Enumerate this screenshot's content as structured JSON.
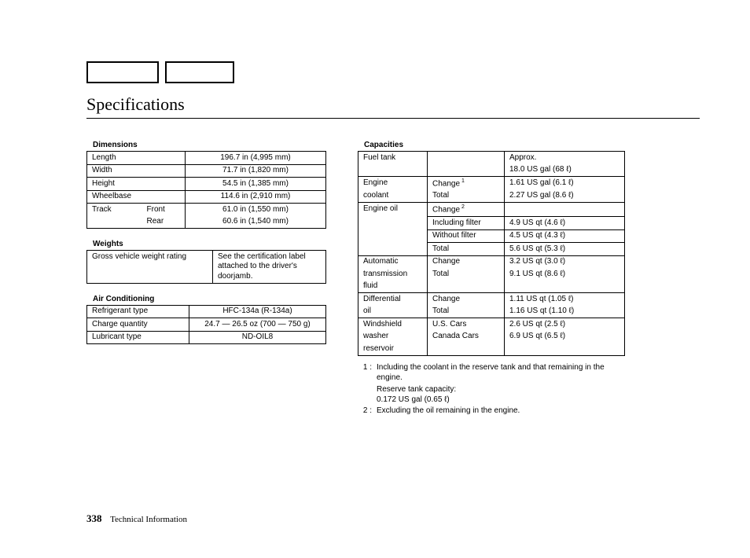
{
  "title": "Specifications",
  "topboxes": {
    "count": 2,
    "widths": [
      88,
      84
    ],
    "height": 24,
    "border_color": "#000000"
  },
  "page_number": "338",
  "page_section": "Technical Information",
  "dimensions": {
    "heading": "Dimensions",
    "rows": [
      {
        "l1": "Length",
        "l2": "",
        "v": "196.7 in (4,995 mm)"
      },
      {
        "l1": "Width",
        "l2": "",
        "v": "71.7 in (1,820 mm)"
      },
      {
        "l1": "Height",
        "l2": "",
        "v": "54.5 in (1,385 mm)"
      },
      {
        "l1": "Wheelbase",
        "l2": "",
        "v": "114.6 in (2,910 mm)"
      },
      {
        "l1": "Track",
        "l2": "Front",
        "v": "61.0 in (1,550 mm)"
      },
      {
        "l1": "",
        "l2": "Rear",
        "v": "60.6 in (1,540 mm)"
      }
    ]
  },
  "weights": {
    "heading": "Weights",
    "label": "Gross vehicle weight rating",
    "value": "See the certification label attached to the driver's doorjamb."
  },
  "ac": {
    "heading": "Air Conditioning",
    "rows": [
      {
        "l": "Refrigerant type",
        "v": "HFC-134a (R-134a)"
      },
      {
        "l": "Charge quantity",
        "v": "24.7 — 26.5 oz (700 — 750 g)"
      },
      {
        "l": "Lubricant type",
        "v": "ND-OIL8"
      }
    ]
  },
  "capacities": {
    "heading": "Capacities",
    "rows": [
      {
        "l1": "Fuel tank",
        "l2": "",
        "v": "Approx.",
        "top": true
      },
      {
        "l1": "",
        "l2": "",
        "v": "18.0 US gal (68 ℓ)"
      },
      {
        "l1": "Engine",
        "l2": "Change",
        "sup": "1",
        "v": "1.61 US gal (6.1 ℓ)",
        "top": true
      },
      {
        "l1": "coolant",
        "l2": "Total",
        "v": "2.27 US gal (8.6 ℓ)"
      },
      {
        "l1": "Engine oil",
        "l2": "Change",
        "sup": "2",
        "v": "",
        "top": true
      },
      {
        "l1": "",
        "l2": "Including filter",
        "v": "4.9 US qt (4.6 ℓ)",
        "ul": true
      },
      {
        "l1": "",
        "l2": "Without filter",
        "v": "4.5 US qt (4.3 ℓ)",
        "ul": true
      },
      {
        "l1": "",
        "l2": "Total",
        "v": "5.6 US qt (5.3 ℓ)",
        "ul": true
      },
      {
        "l1": "Automatic",
        "l2": "Change",
        "v": "3.2 US qt (3.0 ℓ)",
        "top": true
      },
      {
        "l1": "transmission",
        "l2": "Total",
        "v": "9.1 US qt (8.6 ℓ)"
      },
      {
        "l1": "fluid",
        "l2": "",
        "v": ""
      },
      {
        "l1": "Differential",
        "l2": "Change",
        "v": "1.11 US qt (1.05 ℓ)",
        "top": true
      },
      {
        "l1": "oil",
        "l2": "Total",
        "v": "1.16 US qt (1.10 ℓ)"
      },
      {
        "l1": "Windshield",
        "l2": "U.S. Cars",
        "v": "2.6 US qt (2.5 ℓ)",
        "top": true
      },
      {
        "l1": "washer",
        "l2": "Canada Cars",
        "v": "6.9 US qt (6.5 ℓ)"
      },
      {
        "l1": "reservoir",
        "l2": "",
        "v": ""
      }
    ]
  },
  "footnotes": {
    "n1_num": "1 :",
    "n1_text": "Including the coolant in the reserve tank and that remaining in the engine.",
    "n1_sub1": "Reserve tank capacity:",
    "n1_sub2": "0.172 US gal (0.65 ℓ)",
    "n2_num": "2 :",
    "n2_text": "Excluding the oil remaining in the engine."
  },
  "colors": {
    "border": "#000000",
    "text": "#000000",
    "bg": "#ffffff"
  },
  "fonts": {
    "title": {
      "family": "Times New Roman",
      "size": 22,
      "weight": 400
    },
    "body": {
      "family": "Arial",
      "size": 10
    },
    "heading": {
      "family": "Arial",
      "size": 10,
      "weight": 700
    }
  }
}
